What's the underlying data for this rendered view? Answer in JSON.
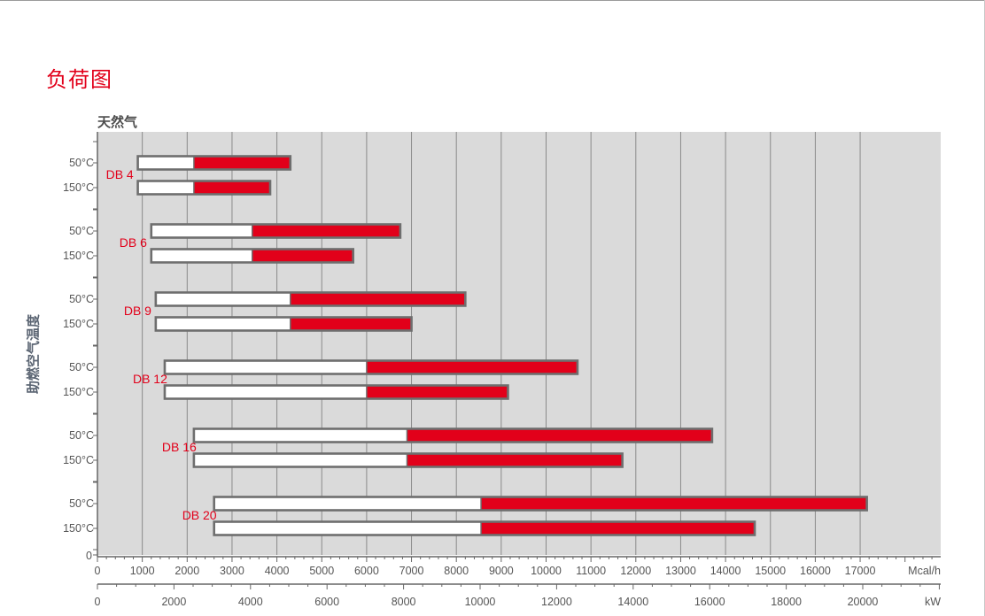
{
  "page": {
    "title": "负荷图",
    "fuel_label": "天然气",
    "y_axis_label": "助燃空气温度"
  },
  "chart_data": {
    "type": "bar",
    "orientation": "horizontal",
    "subtype": "floating-range",
    "title": "负荷图",
    "subtitle": "天然气",
    "ylabel": "助燃空气温度",
    "x_axis_primary": {
      "unit": "Mcal/h",
      "range": [
        0,
        18000
      ],
      "ticks": [
        0,
        1000,
        2000,
        3000,
        4000,
        5000,
        6000,
        7000,
        8000,
        9000,
        10000,
        11000,
        12000,
        13000,
        14000,
        15000,
        16000,
        17000
      ]
    },
    "x_axis_secondary": {
      "unit": "kW",
      "range": [
        0,
        21000
      ],
      "ticks": [
        0,
        2000,
        4000,
        6000,
        8000,
        10000,
        12000,
        14000,
        16000,
        18000,
        20000
      ]
    },
    "colors": {
      "min_segment": "#ffffff",
      "range_segment": "#e2001a",
      "border": "#6e6e6e",
      "background": "#dadada",
      "label": "#e2001a"
    },
    "series": [
      {
        "name": "DB 4",
        "rows": [
          {
            "temp": "50°C",
            "min": 900,
            "mid": 2150,
            "max": 4300
          },
          {
            "temp": "150°C",
            "min": 900,
            "mid": 2150,
            "max": 3850
          }
        ]
      },
      {
        "name": "DB 6",
        "rows": [
          {
            "temp": "50°C",
            "min": 1200,
            "mid": 3450,
            "max": 6750
          },
          {
            "temp": "150°C",
            "min": 1200,
            "mid": 3450,
            "max": 5700
          }
        ]
      },
      {
        "name": "DB 9",
        "rows": [
          {
            "temp": "50°C",
            "min": 1300,
            "mid": 4300,
            "max": 8200
          },
          {
            "temp": "150°C",
            "min": 1300,
            "mid": 4300,
            "max": 7000
          }
        ]
      },
      {
        "name": "DB 12",
        "rows": [
          {
            "temp": "50°C",
            "min": 1500,
            "mid": 6000,
            "max": 10700
          },
          {
            "temp": "150°C",
            "min": 1500,
            "mid": 6000,
            "max": 9150
          }
        ]
      },
      {
        "name": "DB 16",
        "rows": [
          {
            "temp": "50°C",
            "min": 2150,
            "mid": 6900,
            "max": 13700
          },
          {
            "temp": "150°C",
            "min": 2150,
            "mid": 6900,
            "max": 11700
          }
        ]
      },
      {
        "name": "DB 20",
        "rows": [
          {
            "temp": "50°C",
            "min": 2600,
            "mid": 8550,
            "max": 17150
          },
          {
            "temp": "150°C",
            "min": 2600,
            "mid": 8550,
            "max": 14650
          }
        ]
      }
    ]
  }
}
